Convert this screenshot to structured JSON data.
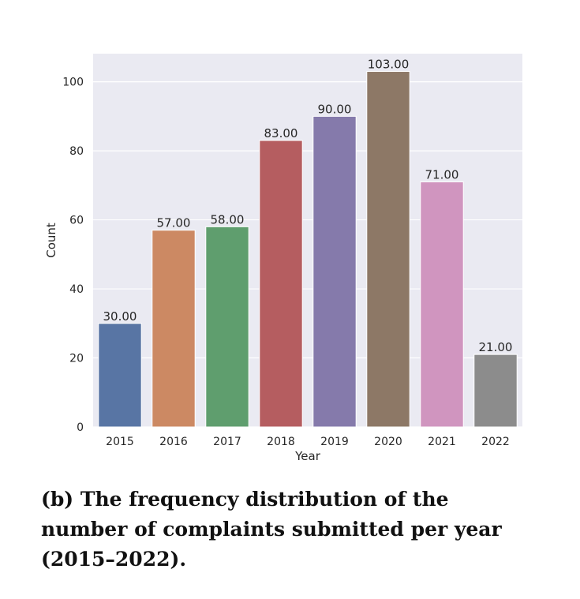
{
  "chart_data": {
    "type": "bar",
    "categories": [
      "2015",
      "2016",
      "2017",
      "2018",
      "2019",
      "2020",
      "2021",
      "2022"
    ],
    "values": [
      30,
      57,
      58,
      83,
      90,
      103,
      71,
      21
    ],
    "value_labels": [
      "30.00",
      "57.00",
      "58.00",
      "83.00",
      "90.00",
      "103.00",
      "71.00",
      "21.00"
    ],
    "colors": [
      "#5875a4",
      "#cc8963",
      "#5f9e6e",
      "#b55d60",
      "#857aab",
      "#8d7866",
      "#d095bf",
      "#8c8c8c"
    ],
    "xlabel": "Year",
    "ylabel": "Count",
    "yticks": [
      0,
      20,
      40,
      60,
      80,
      100
    ],
    "ylim": [
      0,
      108.15
    ],
    "grid": true,
    "background": "#eaeaf2"
  },
  "caption": "(b) The frequency distribution of the number of complaints submitted per year (2015–2022)."
}
